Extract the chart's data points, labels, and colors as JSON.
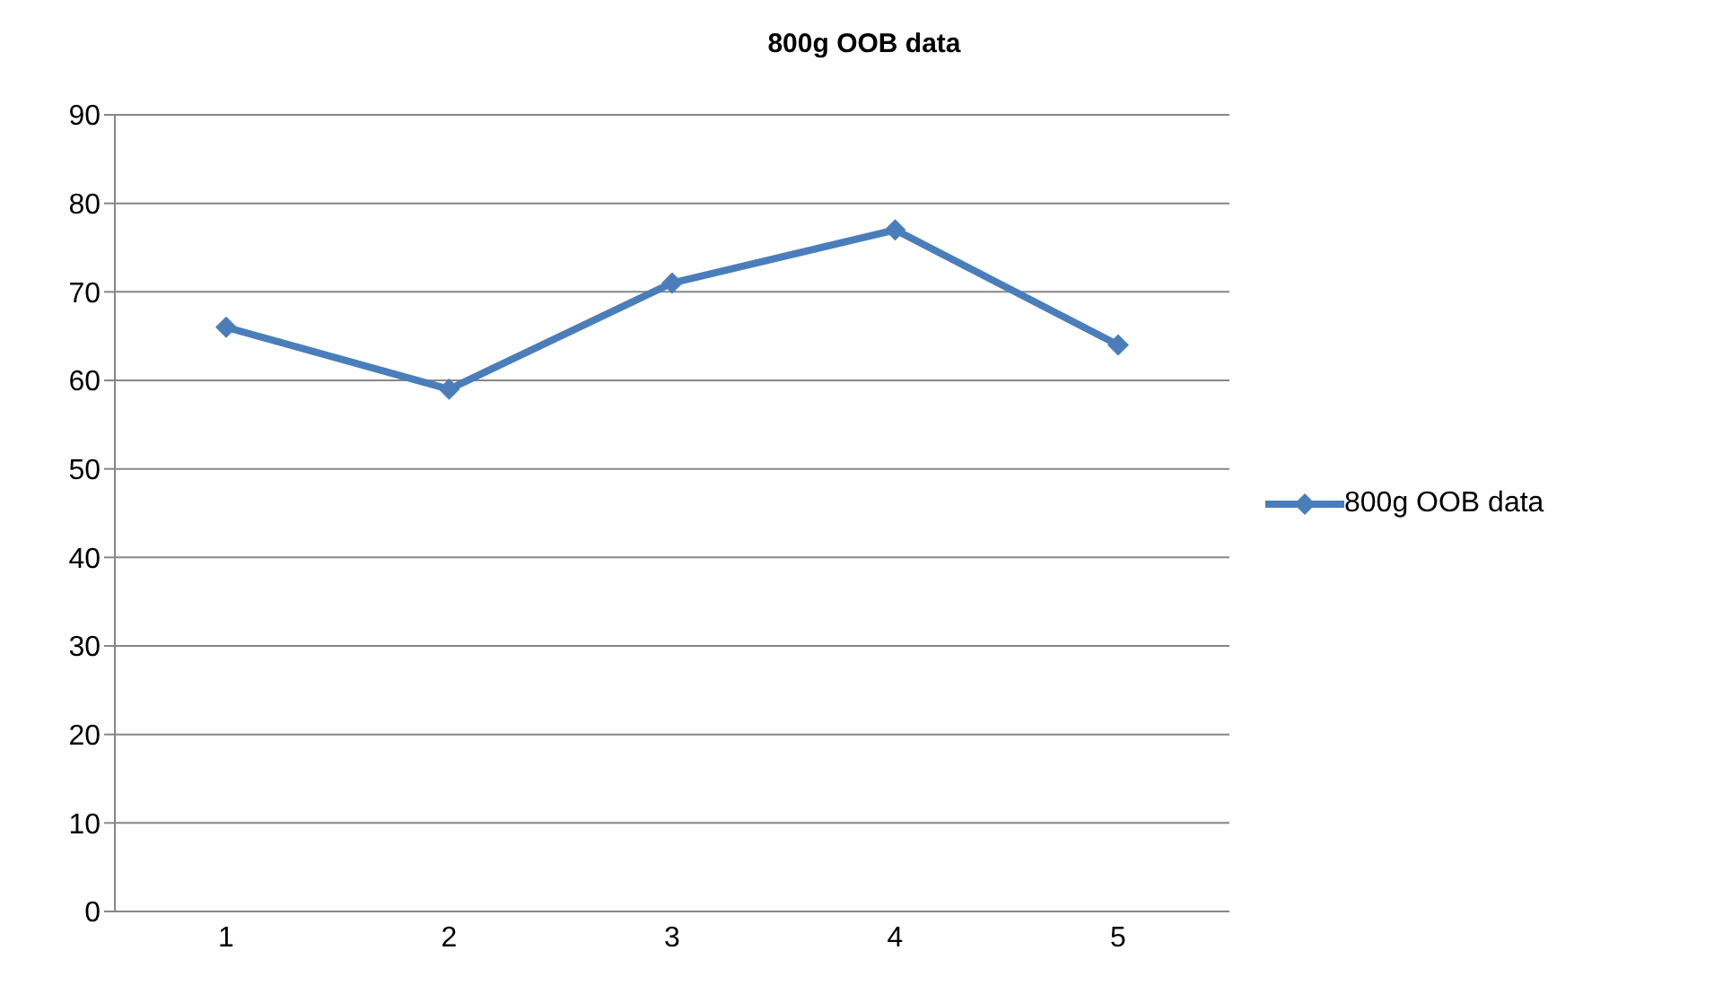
{
  "chart_data": {
    "type": "line",
    "title": "800g OOB data",
    "categories": [
      "1",
      "2",
      "3",
      "4",
      "5"
    ],
    "series": [
      {
        "name": "800g OOB data",
        "color": "#4a7ebb",
        "values": [
          66,
          59,
          71,
          77,
          64
        ]
      }
    ],
    "ylim": [
      0,
      90
    ],
    "yticks": [
      0,
      10,
      20,
      30,
      40,
      50,
      60,
      70,
      80,
      90
    ],
    "grid": "y",
    "legend": "right",
    "marker": "diamond",
    "line_style": "solid"
  }
}
